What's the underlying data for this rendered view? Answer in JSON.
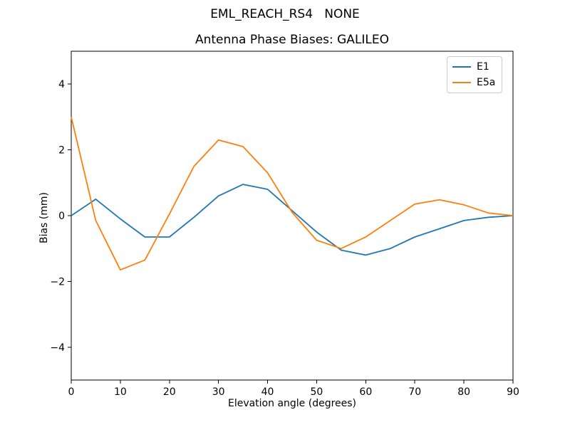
{
  "figure": {
    "suptitle": "EML_REACH_RS4   NONE"
  },
  "chart_data": {
    "type": "line",
    "title": "Antenna Phase Biases: GALILEO",
    "xlabel": "Elevation angle (degrees)",
    "ylabel": "Bias (mm)",
    "xlim": [
      0,
      90
    ],
    "ylim": [
      -5,
      5
    ],
    "x_ticks": [
      0,
      10,
      20,
      30,
      40,
      50,
      60,
      70,
      80,
      90
    ],
    "y_ticks": [
      -4,
      -2,
      0,
      2,
      4
    ],
    "y_tick_labels": [
      "−4",
      "−2",
      "0",
      "2",
      "4"
    ],
    "grid": false,
    "legend_position": "upper right",
    "x": [
      0,
      5,
      10,
      15,
      20,
      25,
      30,
      35,
      40,
      45,
      50,
      55,
      60,
      65,
      70,
      75,
      80,
      85,
      90
    ],
    "series": [
      {
        "name": "E1",
        "color": "#1f77b4",
        "values": [
          0.0,
          0.5,
          -0.1,
          -0.65,
          -0.65,
          -0.05,
          0.6,
          0.95,
          0.8,
          0.15,
          -0.5,
          -1.05,
          -1.2,
          -1.0,
          -0.65,
          -0.4,
          -0.15,
          -0.05,
          0.0
        ]
      },
      {
        "name": "E5a",
        "color": "#ff7f0e",
        "values": [
          3.0,
          -0.15,
          -1.65,
          -1.35,
          0.05,
          1.5,
          2.3,
          2.1,
          1.3,
          0.1,
          -0.75,
          -1.0,
          -0.65,
          -0.15,
          0.35,
          0.48,
          0.33,
          0.08,
          0.0
        ]
      }
    ]
  }
}
